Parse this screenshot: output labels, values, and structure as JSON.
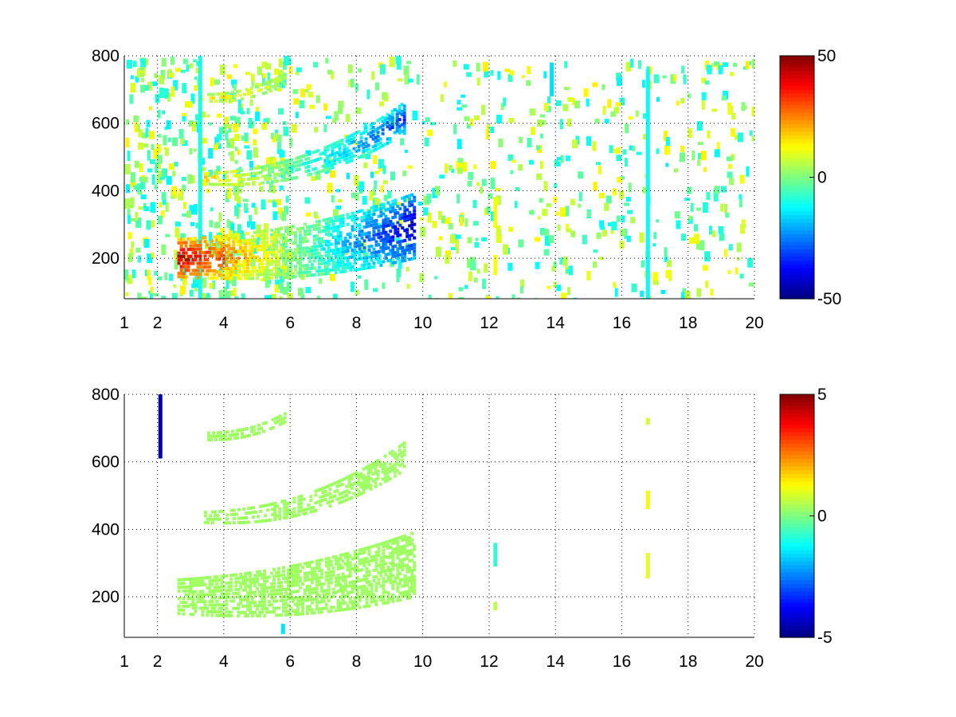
{
  "chart_data": [
    {
      "type": "heatmap",
      "title": "",
      "xlabel": "",
      "ylabel": "",
      "xlim": [
        1,
        20
      ],
      "ylim": [
        80,
        800
      ],
      "x_ticks": [
        1,
        2,
        4,
        6,
        8,
        10,
        12,
        14,
        16,
        18,
        20
      ],
      "x_tick_labels": [
        "1",
        "2",
        "4",
        "6",
        "8",
        "10",
        "12",
        "14",
        "16",
        "18",
        "20"
      ],
      "y_ticks": [
        200,
        400,
        600,
        800
      ],
      "y_tick_labels": [
        "200",
        "400",
        "600",
        "800"
      ],
      "grid": true,
      "colormap": "jet",
      "colorbar": {
        "min": -50,
        "max": 50,
        "ticks": [
          50,
          0,
          -50
        ],
        "tick_labels": [
          "50",
          "0",
          "-50"
        ],
        "placement": "right"
      },
      "bands": [
        {
          "x_start": 2.6,
          "x_end": 9.7,
          "y_start": 205,
          "y_end": 300,
          "width_start": 55,
          "width_end": 95,
          "value_start": 45,
          "value_end": -45
        },
        {
          "x_start": 3.4,
          "x_end": 9.4,
          "y_start": 440,
          "y_end": 620,
          "width_start": 15,
          "width_end": 45,
          "value_start": 20,
          "value_end": -35
        },
        {
          "x_start": 3.5,
          "x_end": 5.8,
          "y_start": 680,
          "y_end": 735,
          "width_start": 10,
          "width_end": 15,
          "value_start": 15,
          "value_end": 5
        }
      ],
      "stripes": [
        {
          "x": 12.2,
          "y_start": 290,
          "y_end": 380,
          "value": 12
        },
        {
          "x": 12.2,
          "y_start": 150,
          "y_end": 210,
          "value": 12
        },
        {
          "x": 16.8,
          "y_start": 80,
          "y_end": 760,
          "value": -12
        },
        {
          "x": 13.9,
          "y_start": 680,
          "y_end": 780,
          "value": -15
        },
        {
          "x": 3.3,
          "y_start": 80,
          "y_end": 800,
          "value": -10
        }
      ]
    },
    {
      "type": "heatmap",
      "title": "",
      "xlabel": "",
      "ylabel": "",
      "xlim": [
        1,
        20
      ],
      "ylim": [
        80,
        800
      ],
      "x_ticks": [
        1,
        2,
        4,
        6,
        8,
        10,
        12,
        14,
        16,
        18,
        20
      ],
      "x_tick_labels": [
        "1",
        "2",
        "4",
        "6",
        "8",
        "10",
        "12",
        "14",
        "16",
        "18",
        "20"
      ],
      "y_ticks": [
        200,
        400,
        600,
        800
      ],
      "y_tick_labels": [
        "200",
        "400",
        "600",
        "800"
      ],
      "grid": true,
      "colormap": "jet",
      "colorbar": {
        "min": -5,
        "max": 5,
        "ticks": [
          5,
          0,
          -5
        ],
        "tick_labels": [
          "5",
          "0",
          "-5"
        ],
        "placement": "right"
      },
      "bands": [
        {
          "x_start": 2.6,
          "x_end": 9.7,
          "y_start": 205,
          "y_end": 300,
          "width_start": 50,
          "width_end": 95,
          "value_start": 0.3,
          "value_end": 0.3
        },
        {
          "x_start": 3.4,
          "x_end": 9.4,
          "y_start": 440,
          "y_end": 620,
          "width_start": 15,
          "width_end": 40,
          "value_start": 0.3,
          "value_end": 0.3
        },
        {
          "x_start": 3.5,
          "x_end": 5.8,
          "y_start": 680,
          "y_end": 735,
          "width_start": 10,
          "width_end": 12,
          "value_start": 0.3,
          "value_end": 0.3
        }
      ],
      "stripes": [
        {
          "x": 2.1,
          "y_start": 610,
          "y_end": 800,
          "value": -4.5
        },
        {
          "x": 16.8,
          "y_start": 460,
          "y_end": 515,
          "value": 1.3
        },
        {
          "x": 16.8,
          "y_start": 255,
          "y_end": 330,
          "value": 1.0
        },
        {
          "x": 16.8,
          "y_start": 710,
          "y_end": 730,
          "value": 0.8
        },
        {
          "x": 12.2,
          "y_start": 290,
          "y_end": 360,
          "value": -0.8
        },
        {
          "x": 12.2,
          "y_start": 160,
          "y_end": 185,
          "value": 0.6
        },
        {
          "x": 5.8,
          "y_start": 90,
          "y_end": 120,
          "value": -1.5
        }
      ]
    }
  ]
}
